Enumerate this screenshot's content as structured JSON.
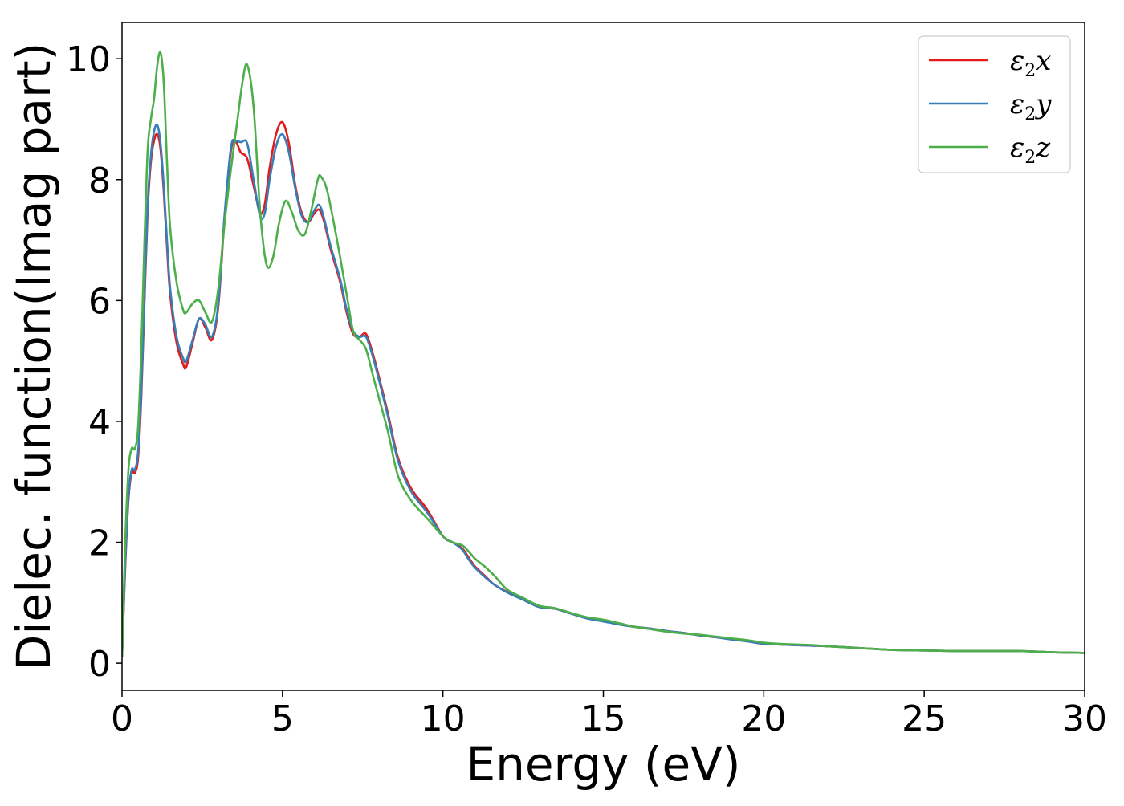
{
  "chart_data": {
    "type": "line",
    "xlabel": "Energy (eV)",
    "ylabel": "Dielec. function(Imag part)",
    "xlim": [
      0,
      30
    ],
    "ylim": [
      -0.45,
      10.6
    ],
    "x_ticks": [
      0,
      5,
      10,
      15,
      20,
      25,
      30
    ],
    "y_ticks": [
      0,
      2,
      4,
      6,
      8,
      10
    ],
    "grid": false,
    "legend_position": "top-right",
    "series": [
      {
        "name": "ε2x",
        "legend": {
          "symbol": "ε",
          "sub": "2",
          "axis": "x"
        },
        "color": "#e41a1c",
        "x": [
          0,
          0.1,
          0.2,
          0.3,
          0.4,
          0.5,
          0.6,
          0.7,
          0.8,
          0.9,
          1.0,
          1.1,
          1.2,
          1.3,
          1.4,
          1.5,
          1.7,
          1.9,
          2.0,
          2.2,
          2.4,
          2.6,
          2.8,
          3.0,
          3.2,
          3.4,
          3.55,
          3.7,
          3.9,
          4.1,
          4.3,
          4.45,
          4.6,
          4.8,
          5.0,
          5.2,
          5.4,
          5.6,
          5.8,
          6.0,
          6.15,
          6.3,
          6.5,
          6.8,
          7.0,
          7.2,
          7.4,
          7.6,
          7.8,
          8.0,
          8.3,
          8.6,
          9.0,
          9.5,
          10.0,
          10.3,
          10.6,
          10.8,
          11.0,
          11.3,
          11.6,
          12.0,
          12.5,
          13.0,
          13.5,
          14.0,
          14.5,
          15.0,
          15.5,
          16.0,
          16.5,
          17.0,
          17.5,
          18.0,
          18.5,
          19.0,
          19.5,
          20.0,
          20.5,
          21.0,
          21.5,
          22.0,
          23.0,
          24.0,
          25.0,
          26.0,
          27.0,
          28.0,
          29.0,
          30.0
        ],
        "y": [
          0.1,
          1.6,
          2.7,
          3.15,
          3.15,
          3.4,
          4.4,
          6.0,
          7.5,
          8.3,
          8.65,
          8.75,
          8.5,
          7.8,
          6.9,
          6.1,
          5.3,
          4.95,
          4.9,
          5.3,
          5.7,
          5.55,
          5.35,
          5.9,
          7.4,
          8.5,
          8.62,
          8.45,
          8.35,
          7.9,
          7.45,
          7.6,
          8.2,
          8.75,
          8.95,
          8.6,
          7.9,
          7.45,
          7.3,
          7.45,
          7.5,
          7.3,
          6.85,
          6.3,
          5.8,
          5.45,
          5.4,
          5.45,
          5.15,
          4.75,
          4.1,
          3.4,
          2.9,
          2.55,
          2.1,
          2.0,
          1.9,
          1.75,
          1.6,
          1.45,
          1.3,
          1.18,
          1.05,
          0.93,
          0.9,
          0.82,
          0.74,
          0.7,
          0.64,
          0.6,
          0.57,
          0.53,
          0.5,
          0.46,
          0.43,
          0.4,
          0.36,
          0.32,
          0.31,
          0.3,
          0.29,
          0.28,
          0.25,
          0.22,
          0.21,
          0.2,
          0.2,
          0.2,
          0.18,
          0.17
        ]
      },
      {
        "name": "ε2y",
        "legend": {
          "symbol": "ε",
          "sub": "2",
          "axis": "y"
        },
        "color": "#377eb8",
        "x": [
          0,
          0.1,
          0.2,
          0.3,
          0.4,
          0.5,
          0.6,
          0.7,
          0.8,
          0.9,
          1.0,
          1.1,
          1.2,
          1.3,
          1.4,
          1.5,
          1.7,
          1.9,
          2.0,
          2.2,
          2.4,
          2.6,
          2.8,
          3.0,
          3.2,
          3.4,
          3.55,
          3.7,
          3.9,
          4.1,
          4.3,
          4.45,
          4.6,
          4.8,
          5.0,
          5.2,
          5.4,
          5.6,
          5.8,
          6.0,
          6.15,
          6.3,
          6.5,
          6.8,
          7.0,
          7.2,
          7.4,
          7.6,
          7.8,
          8.0,
          8.3,
          8.6,
          9.0,
          9.5,
          10.0,
          10.3,
          10.6,
          10.8,
          11.0,
          11.3,
          11.6,
          12.0,
          12.5,
          13.0,
          13.5,
          14.0,
          14.5,
          15.0,
          15.5,
          16.0,
          16.5,
          17.0,
          17.5,
          18.0,
          18.5,
          19.0,
          19.5,
          20.0,
          20.5,
          21.0,
          21.5,
          22.0,
          23.0,
          24.0,
          25.0,
          26.0,
          27.0,
          28.0,
          29.0,
          30.0
        ],
        "y": [
          0.1,
          1.65,
          2.75,
          3.2,
          3.2,
          3.5,
          4.5,
          6.1,
          7.6,
          8.4,
          8.8,
          8.9,
          8.6,
          7.9,
          7.0,
          6.2,
          5.4,
          5.05,
          5.0,
          5.35,
          5.7,
          5.6,
          5.4,
          5.95,
          7.45,
          8.55,
          8.63,
          8.62,
          8.6,
          8.0,
          7.4,
          7.45,
          8.0,
          8.55,
          8.75,
          8.45,
          7.85,
          7.4,
          7.3,
          7.5,
          7.58,
          7.35,
          6.9,
          6.35,
          5.85,
          5.5,
          5.4,
          5.4,
          5.1,
          4.7,
          4.05,
          3.35,
          2.85,
          2.5,
          2.1,
          2.0,
          1.88,
          1.72,
          1.58,
          1.43,
          1.3,
          1.17,
          1.05,
          0.93,
          0.9,
          0.82,
          0.74,
          0.69,
          0.64,
          0.6,
          0.57,
          0.53,
          0.5,
          0.46,
          0.43,
          0.39,
          0.36,
          0.32,
          0.31,
          0.3,
          0.29,
          0.28,
          0.25,
          0.22,
          0.21,
          0.2,
          0.2,
          0.2,
          0.18,
          0.17
        ]
      },
      {
        "name": "ε2z",
        "legend": {
          "symbol": "ε",
          "sub": "2",
          "axis": "z"
        },
        "color": "#4daf4a",
        "x": [
          0,
          0.1,
          0.2,
          0.3,
          0.4,
          0.5,
          0.6,
          0.7,
          0.8,
          0.9,
          1.0,
          1.1,
          1.2,
          1.3,
          1.4,
          1.5,
          1.7,
          1.9,
          2.0,
          2.2,
          2.4,
          2.6,
          2.8,
          3.0,
          3.2,
          3.4,
          3.6,
          3.75,
          3.9,
          4.1,
          4.3,
          4.5,
          4.7,
          4.9,
          5.1,
          5.3,
          5.5,
          5.7,
          5.9,
          6.1,
          6.2,
          6.4,
          6.7,
          7.0,
          7.2,
          7.4,
          7.6,
          7.8,
          8.0,
          8.3,
          8.6,
          9.0,
          9.5,
          10.0,
          10.3,
          10.6,
          10.8,
          11.0,
          11.3,
          11.6,
          12.0,
          12.5,
          13.0,
          13.5,
          14.0,
          14.5,
          15.0,
          15.5,
          16.0,
          16.5,
          17.0,
          17.5,
          18.0,
          18.5,
          19.0,
          19.5,
          20.0,
          20.5,
          21.0,
          21.5,
          22.0,
          23.0,
          24.0,
          25.0,
          26.0,
          27.0,
          28.0,
          29.0,
          30.0
        ],
        "y": [
          0.1,
          2.0,
          3.2,
          3.55,
          3.55,
          3.9,
          5.2,
          7.0,
          8.5,
          9.0,
          9.35,
          9.9,
          10.1,
          9.6,
          8.3,
          7.2,
          6.3,
          5.85,
          5.8,
          5.95,
          6.0,
          5.8,
          5.65,
          6.2,
          7.3,
          8.2,
          9.0,
          9.6,
          9.9,
          9.2,
          7.5,
          6.6,
          6.7,
          7.3,
          7.65,
          7.45,
          7.15,
          7.1,
          7.5,
          8.0,
          8.05,
          7.8,
          7.0,
          6.1,
          5.5,
          5.35,
          5.2,
          4.8,
          4.4,
          3.8,
          3.1,
          2.7,
          2.4,
          2.1,
          2.0,
          1.95,
          1.85,
          1.73,
          1.6,
          1.45,
          1.22,
          1.08,
          0.95,
          0.91,
          0.83,
          0.76,
          0.72,
          0.66,
          0.6,
          0.56,
          0.52,
          0.49,
          0.47,
          0.44,
          0.41,
          0.38,
          0.34,
          0.32,
          0.31,
          0.3,
          0.28,
          0.25,
          0.22,
          0.21,
          0.2,
          0.2,
          0.2,
          0.18,
          0.17
        ]
      }
    ]
  }
}
